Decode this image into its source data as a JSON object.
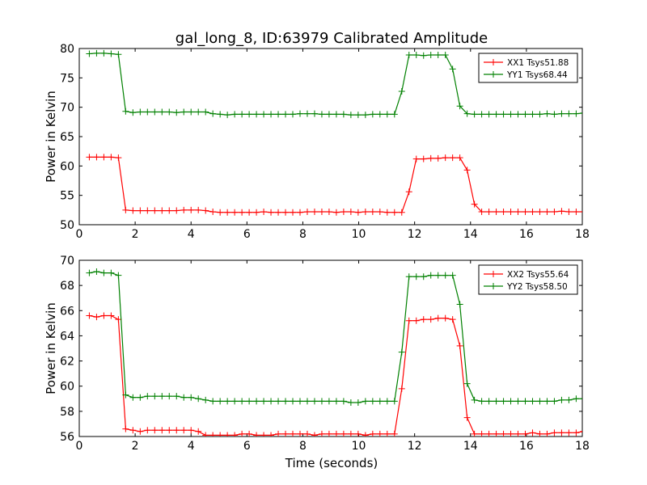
{
  "title": "gal_long_8, ID:63979 Calibrated Amplitude",
  "xlabel": "Time (seconds)",
  "chart_data": [
    {
      "type": "line",
      "ylabel": "Power in Kelvin",
      "xlim": [
        0,
        18
      ],
      "ylim": [
        50,
        80
      ],
      "xticks": [
        0,
        2,
        4,
        6,
        8,
        10,
        12,
        14,
        16,
        18
      ],
      "yticks": [
        50,
        55,
        60,
        65,
        70,
        75,
        80
      ],
      "grid": false,
      "legend_position": "top-right",
      "x": [
        0.36,
        0.62,
        0.88,
        1.14,
        1.4,
        1.66,
        1.92,
        2.18,
        2.44,
        2.7,
        2.96,
        3.22,
        3.48,
        3.74,
        4.0,
        4.26,
        4.52,
        4.78,
        5.04,
        5.3,
        5.56,
        5.82,
        6.08,
        6.34,
        6.6,
        6.86,
        7.12,
        7.38,
        7.64,
        7.9,
        8.16,
        8.42,
        8.68,
        8.94,
        9.2,
        9.46,
        9.72,
        9.98,
        10.24,
        10.5,
        10.76,
        11.02,
        11.28,
        11.54,
        11.8,
        12.06,
        12.32,
        12.58,
        12.84,
        13.1,
        13.36,
        13.62,
        13.88,
        14.14,
        14.4,
        14.66,
        14.92,
        15.18,
        15.44,
        15.7,
        15.96,
        16.22,
        16.48,
        16.74,
        17.0,
        17.26,
        17.52,
        17.78,
        18.04
      ],
      "series": [
        {
          "name": "XX1 Tsys51.88",
          "color": "#ff0000",
          "values": [
            61.5,
            61.5,
            61.5,
            61.5,
            61.4,
            52.5,
            52.4,
            52.4,
            52.4,
            52.4,
            52.4,
            52.4,
            52.4,
            52.5,
            52.5,
            52.5,
            52.4,
            52.2,
            52.1,
            52.1,
            52.1,
            52.1,
            52.1,
            52.1,
            52.2,
            52.1,
            52.1,
            52.1,
            52.1,
            52.1,
            52.2,
            52.2,
            52.2,
            52.2,
            52.1,
            52.2,
            52.2,
            52.1,
            52.2,
            52.2,
            52.2,
            52.1,
            52.1,
            52.1,
            55.6,
            61.2,
            61.2,
            61.3,
            61.3,
            61.4,
            61.4,
            61.4,
            59.3,
            53.5,
            52.2,
            52.2,
            52.2,
            52.2,
            52.2,
            52.2,
            52.2,
            52.2,
            52.2,
            52.2,
            52.2,
            52.3,
            52.2,
            52.2,
            52.2
          ]
        },
        {
          "name": "YY1 Tsys68.44",
          "color": "#008000",
          "values": [
            79.1,
            79.2,
            79.2,
            79.1,
            79.0,
            69.3,
            69.1,
            69.2,
            69.2,
            69.2,
            69.2,
            69.2,
            69.1,
            69.2,
            69.2,
            69.2,
            69.2,
            68.9,
            68.8,
            68.7,
            68.8,
            68.8,
            68.8,
            68.8,
            68.8,
            68.8,
            68.8,
            68.8,
            68.8,
            68.9,
            68.9,
            68.9,
            68.8,
            68.8,
            68.8,
            68.8,
            68.7,
            68.7,
            68.7,
            68.8,
            68.8,
            68.8,
            68.8,
            72.7,
            78.9,
            78.9,
            78.8,
            78.9,
            78.9,
            78.9,
            76.5,
            70.2,
            68.9,
            68.8,
            68.8,
            68.8,
            68.8,
            68.8,
            68.8,
            68.8,
            68.8,
            68.8,
            68.8,
            68.9,
            68.8,
            68.9,
            68.9,
            68.9,
            69.0
          ]
        }
      ]
    },
    {
      "type": "line",
      "ylabel": "Power in Kelvin",
      "xlabel": "Time (seconds)",
      "xlim": [
        0,
        18
      ],
      "ylim": [
        56,
        70
      ],
      "xticks": [
        0,
        2,
        4,
        6,
        8,
        10,
        12,
        14,
        16,
        18
      ],
      "yticks": [
        56,
        58,
        60,
        62,
        64,
        66,
        68,
        70
      ],
      "grid": false,
      "legend_position": "top-right",
      "x": [
        0.36,
        0.62,
        0.88,
        1.14,
        1.4,
        1.66,
        1.92,
        2.18,
        2.44,
        2.7,
        2.96,
        3.22,
        3.48,
        3.74,
        4.0,
        4.26,
        4.52,
        4.78,
        5.04,
        5.3,
        5.56,
        5.82,
        6.08,
        6.34,
        6.6,
        6.86,
        7.12,
        7.38,
        7.64,
        7.9,
        8.16,
        8.42,
        8.68,
        8.94,
        9.2,
        9.46,
        9.72,
        9.98,
        10.24,
        10.5,
        10.76,
        11.02,
        11.28,
        11.54,
        11.8,
        12.06,
        12.32,
        12.58,
        12.84,
        13.1,
        13.36,
        13.62,
        13.88,
        14.14,
        14.4,
        14.66,
        14.92,
        15.18,
        15.44,
        15.7,
        15.96,
        16.22,
        16.48,
        16.74,
        17.0,
        17.26,
        17.52,
        17.78,
        18.04
      ],
      "series": [
        {
          "name": "XX2 Tsys55.64",
          "color": "#ff0000",
          "values": [
            65.6,
            65.5,
            65.6,
            65.6,
            65.3,
            56.6,
            56.5,
            56.4,
            56.5,
            56.5,
            56.5,
            56.5,
            56.5,
            56.5,
            56.5,
            56.4,
            56.1,
            56.1,
            56.1,
            56.1,
            56.1,
            56.2,
            56.2,
            56.1,
            56.1,
            56.1,
            56.2,
            56.2,
            56.2,
            56.2,
            56.2,
            56.1,
            56.2,
            56.2,
            56.2,
            56.2,
            56.2,
            56.2,
            56.1,
            56.2,
            56.2,
            56.2,
            56.2,
            59.8,
            65.2,
            65.2,
            65.3,
            65.3,
            65.4,
            65.4,
            65.3,
            63.2,
            57.5,
            56.2,
            56.2,
            56.2,
            56.2,
            56.2,
            56.2,
            56.2,
            56.2,
            56.3,
            56.2,
            56.2,
            56.3,
            56.3,
            56.3,
            56.3,
            56.4
          ]
        },
        {
          "name": "YY2 Tsys58.50",
          "color": "#008000",
          "values": [
            69.0,
            69.1,
            69.0,
            69.0,
            68.8,
            59.3,
            59.1,
            59.1,
            59.2,
            59.2,
            59.2,
            59.2,
            59.2,
            59.1,
            59.1,
            59.0,
            58.9,
            58.8,
            58.8,
            58.8,
            58.8,
            58.8,
            58.8,
            58.8,
            58.8,
            58.8,
            58.8,
            58.8,
            58.8,
            58.8,
            58.8,
            58.8,
            58.8,
            58.8,
            58.8,
            58.8,
            58.7,
            58.7,
            58.8,
            58.8,
            58.8,
            58.8,
            58.8,
            62.7,
            68.7,
            68.7,
            68.7,
            68.8,
            68.8,
            68.8,
            68.8,
            66.5,
            60.2,
            58.9,
            58.8,
            58.8,
            58.8,
            58.8,
            58.8,
            58.8,
            58.8,
            58.8,
            58.8,
            58.8,
            58.8,
            58.9,
            58.9,
            59.0,
            59.0
          ]
        }
      ]
    }
  ]
}
